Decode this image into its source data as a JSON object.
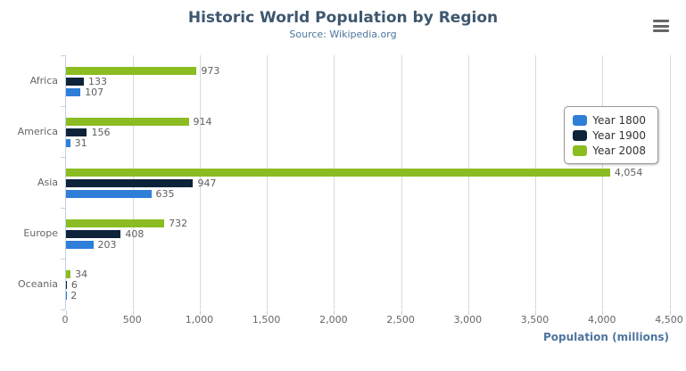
{
  "header": {
    "title": "Historic World Population by Region",
    "subtitle": "Source: Wikipedia.org"
  },
  "x_axis": {
    "title": "Population (millions)",
    "tick_labels": [
      "0",
      "500",
      "1,000",
      "1,500",
      "2,000",
      "2,500",
      "3,000",
      "3,500",
      "4,000",
      "4,500"
    ],
    "tick_values": [
      0,
      500,
      1000,
      1500,
      2000,
      2500,
      3000,
      3500,
      4000,
      4500
    ]
  },
  "y_axis": {
    "categories": [
      "Africa",
      "America",
      "Asia",
      "Europe",
      "Oceania"
    ]
  },
  "legend": {
    "position": "right",
    "items": [
      {
        "label": "Year 1800",
        "color": "#2f7ed8"
      },
      {
        "label": "Year 1900",
        "color": "#0d233a"
      },
      {
        "label": "Year 2008",
        "color": "#8bbc21"
      }
    ]
  },
  "chart_data": {
    "type": "bar",
    "orientation": "horizontal",
    "title": "Historic World Population by Region",
    "subtitle": "Source: Wikipedia.org",
    "xlabel": "Population (millions)",
    "ylabel": "",
    "xlim": [
      0,
      4500
    ],
    "grid": true,
    "legend_position": "right",
    "categories": [
      "Africa",
      "America",
      "Asia",
      "Europe",
      "Oceania"
    ],
    "series": [
      {
        "name": "Year 1800",
        "color": "#2f7ed8",
        "values": [
          107,
          31,
          635,
          203,
          2
        ],
        "labels": [
          "107",
          "31",
          "635",
          "203",
          "2"
        ]
      },
      {
        "name": "Year 1900",
        "color": "#0d233a",
        "values": [
          133,
          156,
          947,
          408,
          6
        ],
        "labels": [
          "133",
          "156",
          "947",
          "408",
          "6"
        ]
      },
      {
        "name": "Year 2008",
        "color": "#8bbc21",
        "values": [
          973,
          914,
          4054,
          732,
          34
        ],
        "labels": [
          "973",
          "914",
          "4,054",
          "732",
          "34"
        ]
      }
    ],
    "series_display_order_top_to_bottom": [
      "Year 2008",
      "Year 1900",
      "Year 1800"
    ]
  },
  "colors": {
    "title": "#3E576F",
    "subtitle": "#4d759e",
    "axis_title": "#4d759e",
    "axis_labels": "#666666",
    "data_labels": "#606060",
    "grid_line": "#D8D8D8",
    "axis_line": "#C0D0E0",
    "legend_border": "#999999",
    "menu_icon": "#666666",
    "background": "#ffffff"
  },
  "icons": {
    "menu": "burger-menu-icon"
  }
}
